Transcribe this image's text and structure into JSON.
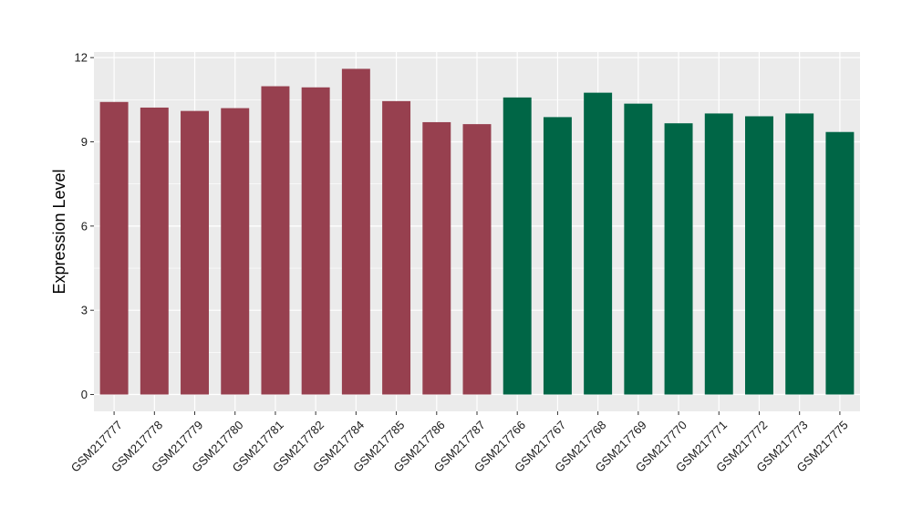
{
  "chart_data": {
    "type": "bar",
    "ylabel": "Expression Level",
    "xlabel": "",
    "ylim": [
      -0.6,
      12.2
    ],
    "y_ticks": [
      0,
      3,
      6,
      9,
      12
    ],
    "grid": true,
    "legend": "none",
    "categories": [
      "GSM217777",
      "GSM217778",
      "GSM217779",
      "GSM217780",
      "GSM217781",
      "GSM217782",
      "GSM217784",
      "GSM217785",
      "GSM217786",
      "GSM217787",
      "GSM217766",
      "GSM217767",
      "GSM217768",
      "GSM217769",
      "GSM217770",
      "GSM217771",
      "GSM217772",
      "GSM217773",
      "GSM217775"
    ],
    "values": [
      10.42,
      10.22,
      10.1,
      10.2,
      10.98,
      10.94,
      11.6,
      10.45,
      9.7,
      9.63,
      10.58,
      9.88,
      10.75,
      10.36,
      9.66,
      10.01,
      9.91,
      10.01,
      9.35
    ],
    "bar_colors": [
      "#97404F",
      "#97404F",
      "#97404F",
      "#97404F",
      "#97404F",
      "#97404F",
      "#97404F",
      "#97404F",
      "#97404F",
      "#97404F",
      "#006646",
      "#006646",
      "#006646",
      "#006646",
      "#006646",
      "#006646",
      "#006646",
      "#006646",
      "#006646"
    ],
    "panel_background": "#EBEBEB",
    "grid_color": "#FFFFFF"
  }
}
